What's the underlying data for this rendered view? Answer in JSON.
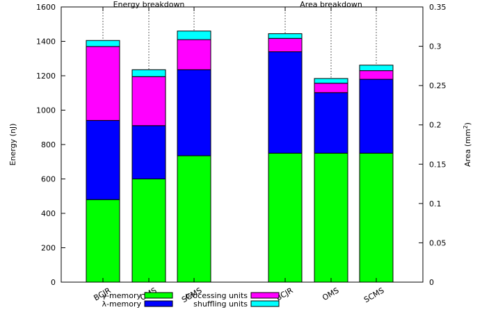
{
  "chart_data": {
    "type": "bar",
    "stacked": true,
    "groups": [
      {
        "title": "Energy breakdown",
        "axis": "left",
        "categories": [
          "BCJR",
          "OMS",
          "SCMS"
        ],
        "series": [
          {
            "name": "γ-memory",
            "color": "#00ff00",
            "values": [
              480,
              600,
              735
            ]
          },
          {
            "name": "λ-memory",
            "color": "#0000ff",
            "values": [
              460,
              310,
              500
            ]
          },
          {
            "name": "processing units",
            "color": "#ff00ff",
            "values": [
              430,
              285,
              175
            ]
          },
          {
            "name": "shuffling units",
            "color": "#00ffff",
            "values": [
              35,
              40,
              50
            ]
          }
        ]
      },
      {
        "title": "Area breakdown",
        "axis": "right",
        "categories": [
          "BCJR",
          "OMS",
          "SCMS"
        ],
        "series": [
          {
            "name": "γ-memory",
            "color": "#00ff00",
            "values": [
              0.164,
              0.164,
              0.164
            ]
          },
          {
            "name": "λ-memory",
            "color": "#0000ff",
            "values": [
              0.129,
              0.077,
              0.094
            ]
          },
          {
            "name": "processing units",
            "color": "#ff00ff",
            "values": [
              0.017,
              0.012,
              0.011
            ]
          },
          {
            "name": "shuffling units",
            "color": "#00ffff",
            "values": [
              0.006,
              0.006,
              0.007
            ]
          }
        ]
      }
    ],
    "y_left": {
      "label": "Energy (nJ)",
      "lim": [
        0,
        1600
      ],
      "ticks": [
        "0",
        "200",
        "400",
        "600",
        "800",
        "1000",
        "1200",
        "1400",
        "1600"
      ]
    },
    "y_right": {
      "label": "Area (mm",
      "label_sup": "2",
      "label_close": ")",
      "lim": [
        0,
        0.35
      ],
      "ticks": [
        "0",
        "0.05",
        "0.1",
        "0.15",
        "0.2",
        "0.25",
        "0.3",
        "0.35"
      ]
    },
    "grid": false,
    "legend_position": "bottom",
    "legend": [
      {
        "name": "γ-memory",
        "color": "#00ff00"
      },
      {
        "name": "λ-memory",
        "color": "#0000ff"
      },
      {
        "name": "processing units",
        "color": "#ff00ff"
      },
      {
        "name": "shuffling units",
        "color": "#00ffff"
      }
    ]
  }
}
